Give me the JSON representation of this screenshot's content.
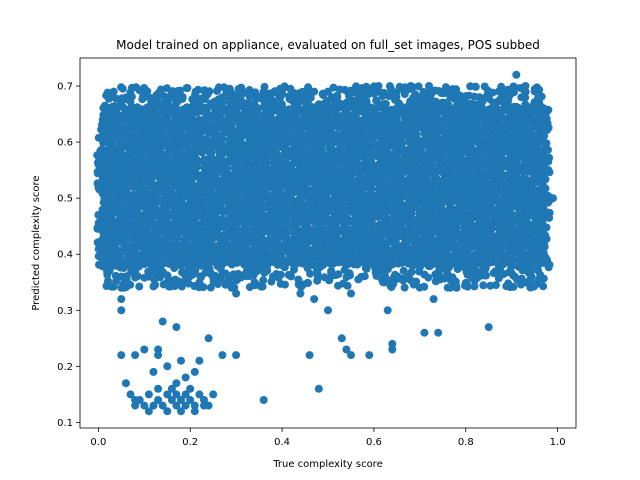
{
  "chart_data": {
    "type": "scatter",
    "title": "Model trained on appliance, evaluated on full_set images, POS subbed",
    "xlabel": "True complexity score",
    "ylabel": "Predicted complexity score",
    "xlim": [
      -0.04,
      1.04
    ],
    "ylim": [
      0.09,
      0.75
    ],
    "xticks": [
      0.0,
      0.2,
      0.4,
      0.6,
      0.8,
      1.0
    ],
    "xtick_labels": [
      "0.0",
      "0.2",
      "0.4",
      "0.6",
      "0.8",
      "1.0"
    ],
    "yticks": [
      0.1,
      0.2,
      0.3,
      0.4,
      0.5,
      0.6,
      0.7
    ],
    "ytick_labels": [
      "0.1",
      "0.2",
      "0.3",
      "0.4",
      "0.5",
      "0.6",
      "0.7"
    ],
    "grid": false,
    "marker_color": "#1f77b4",
    "dense_region": {
      "x_range": [
        0.01,
        0.97
      ],
      "y_range": [
        0.34,
        0.7
      ],
      "y_core": [
        0.38,
        0.66
      ]
    },
    "points": [
      [
        0.01,
        0.63
      ],
      [
        0.02,
        0.64
      ],
      [
        0.03,
        0.6
      ],
      [
        0.04,
        0.65
      ],
      [
        0.05,
        0.62
      ],
      [
        0.06,
        0.64
      ],
      [
        0.11,
        0.68
      ],
      [
        0.12,
        0.67
      ],
      [
        0.17,
        0.67
      ],
      [
        0.19,
        0.66
      ],
      [
        0.21,
        0.68
      ],
      [
        0.25,
        0.67
      ],
      [
        0.27,
        0.68
      ],
      [
        0.33,
        0.68
      ],
      [
        0.36,
        0.69
      ],
      [
        0.42,
        0.68
      ],
      [
        0.47,
        0.69
      ],
      [
        0.5,
        0.69
      ],
      [
        0.54,
        0.67
      ],
      [
        0.57,
        0.69
      ],
      [
        0.61,
        0.7
      ],
      [
        0.64,
        0.69
      ],
      [
        0.68,
        0.7
      ],
      [
        0.72,
        0.7
      ],
      [
        0.76,
        0.69
      ],
      [
        0.8,
        0.68
      ],
      [
        0.83,
        0.68
      ],
      [
        0.86,
        0.67
      ],
      [
        0.88,
        0.69
      ],
      [
        0.91,
        0.72
      ],
      [
        0.93,
        0.7
      ],
      [
        0.95,
        0.69
      ],
      [
        0.95,
        0.66
      ],
      [
        0.97,
        0.66
      ],
      [
        0.97,
        0.62
      ],
      [
        0.98,
        0.55
      ],
      [
        0.99,
        0.5
      ],
      [
        0.98,
        0.47
      ],
      [
        0.97,
        0.42
      ],
      [
        0.95,
        0.4
      ],
      [
        0.0,
        0.56
      ],
      [
        0.0,
        0.52
      ],
      [
        0.0,
        0.47
      ],
      [
        0.0,
        0.42
      ],
      [
        0.01,
        0.39
      ],
      [
        0.05,
        0.36
      ],
      [
        0.05,
        0.34
      ],
      [
        0.08,
        0.37
      ],
      [
        0.11,
        0.36
      ],
      [
        0.15,
        0.35
      ],
      [
        0.19,
        0.36
      ],
      [
        0.22,
        0.35
      ],
      [
        0.29,
        0.34
      ],
      [
        0.34,
        0.35
      ],
      [
        0.38,
        0.36
      ],
      [
        0.05,
        0.32
      ],
      [
        0.05,
        0.3
      ],
      [
        0.3,
        0.33
      ],
      [
        0.44,
        0.33
      ],
      [
        0.47,
        0.32
      ],
      [
        0.5,
        0.3
      ],
      [
        0.55,
        0.33
      ],
      [
        0.63,
        0.3
      ],
      [
        0.73,
        0.32
      ],
      [
        0.78,
        0.34
      ],
      [
        0.85,
        0.27
      ],
      [
        0.71,
        0.26
      ],
      [
        0.74,
        0.26
      ],
      [
        0.17,
        0.27
      ],
      [
        0.14,
        0.28
      ],
      [
        0.24,
        0.25
      ],
      [
        0.05,
        0.22
      ],
      [
        0.08,
        0.22
      ],
      [
        0.1,
        0.23
      ],
      [
        0.13,
        0.23
      ],
      [
        0.13,
        0.22
      ],
      [
        0.15,
        0.2
      ],
      [
        0.18,
        0.21
      ],
      [
        0.22,
        0.21
      ],
      [
        0.27,
        0.22
      ],
      [
        0.3,
        0.22
      ],
      [
        0.12,
        0.19
      ],
      [
        0.17,
        0.17
      ],
      [
        0.19,
        0.18
      ],
      [
        0.21,
        0.19
      ],
      [
        0.06,
        0.17
      ],
      [
        0.07,
        0.15
      ],
      [
        0.46,
        0.22
      ],
      [
        0.53,
        0.25
      ],
      [
        0.54,
        0.23
      ],
      [
        0.55,
        0.22
      ],
      [
        0.59,
        0.22
      ],
      [
        0.64,
        0.24
      ],
      [
        0.64,
        0.23
      ],
      [
        0.48,
        0.16
      ],
      [
        0.36,
        0.14
      ],
      [
        0.08,
        0.13
      ],
      [
        0.09,
        0.14
      ],
      [
        0.1,
        0.13
      ],
      [
        0.11,
        0.15
      ],
      [
        0.12,
        0.13
      ],
      [
        0.13,
        0.14
      ],
      [
        0.14,
        0.13
      ],
      [
        0.15,
        0.12
      ],
      [
        0.16,
        0.14
      ],
      [
        0.16,
        0.16
      ],
      [
        0.17,
        0.13
      ],
      [
        0.17,
        0.15
      ],
      [
        0.18,
        0.14
      ],
      [
        0.18,
        0.12
      ],
      [
        0.19,
        0.13
      ],
      [
        0.19,
        0.15
      ],
      [
        0.2,
        0.14
      ],
      [
        0.2,
        0.16
      ],
      [
        0.21,
        0.13
      ],
      [
        0.22,
        0.15
      ],
      [
        0.23,
        0.13
      ],
      [
        0.23,
        0.14
      ],
      [
        0.24,
        0.13
      ],
      [
        0.25,
        0.15
      ],
      [
        0.08,
        0.14
      ],
      [
        0.13,
        0.16
      ],
      [
        0.15,
        0.15
      ],
      [
        0.21,
        0.12
      ],
      [
        0.11,
        0.12
      ]
    ]
  }
}
